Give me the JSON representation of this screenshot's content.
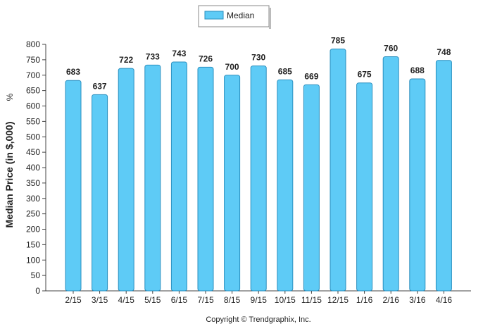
{
  "chart_data": {
    "type": "bar",
    "categories": [
      "2/15",
      "3/15",
      "4/15",
      "5/15",
      "6/15",
      "7/15",
      "8/15",
      "9/15",
      "10/15",
      "11/15",
      "12/15",
      "1/16",
      "2/16",
      "3/16",
      "4/16"
    ],
    "series": [
      {
        "name": "Median",
        "values": [
          683,
          637,
          722,
          733,
          743,
          726,
          700,
          730,
          685,
          669,
          785,
          675,
          760,
          688,
          748
        ],
        "color": "#5ecbf6",
        "stroke": "#2a8fbf"
      }
    ],
    "title": "",
    "xlabel": "",
    "ylabel": "Median Price (in $,000)",
    "ylabel_unit": "%",
    "ylim": [
      0,
      800
    ],
    "yticks": [
      0,
      50,
      100,
      150,
      200,
      250,
      300,
      350,
      400,
      450,
      500,
      550,
      600,
      650,
      700,
      750,
      800
    ],
    "grid": false,
    "legend_position": "top-center",
    "data_labels": true
  },
  "footer": {
    "copyright": "Copyright © Trendgraphix, Inc."
  }
}
